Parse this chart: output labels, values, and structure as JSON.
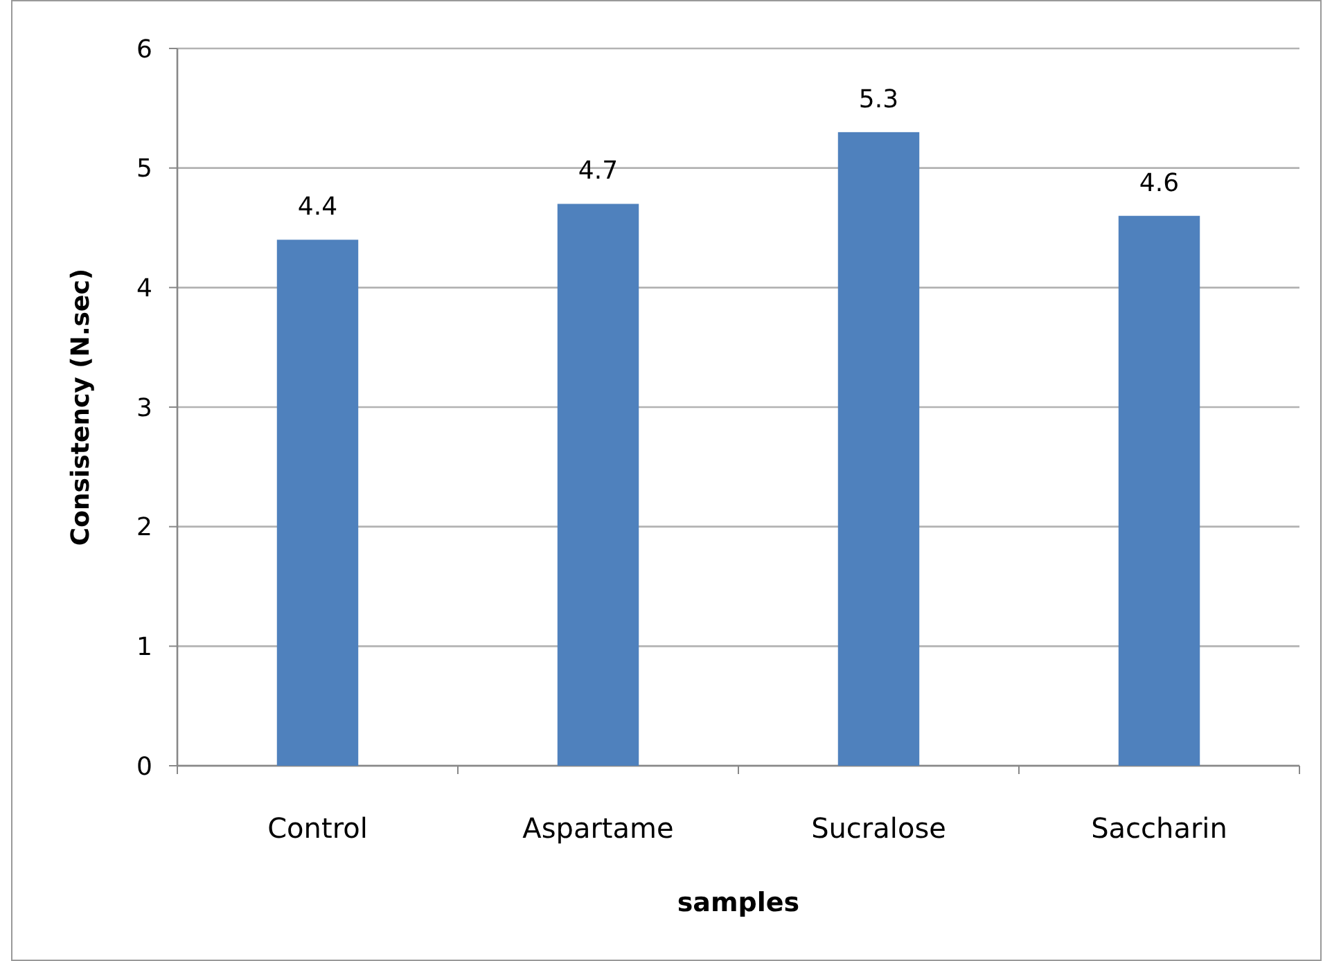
{
  "chart_data": {
    "type": "bar",
    "xlabel": "samples",
    "ylabel": "Consistency (N.sec)",
    "categories": [
      "Control",
      "Aspartame",
      "Sucralose",
      "Saccharin"
    ],
    "values": [
      4.4,
      4.7,
      5.3,
      4.6
    ],
    "color": "#4f81bd",
    "ylim": [
      0,
      6
    ],
    "yticks": [
      0,
      1,
      2,
      3,
      4,
      5,
      6
    ],
    "grid": "y",
    "data_labels": true
  }
}
